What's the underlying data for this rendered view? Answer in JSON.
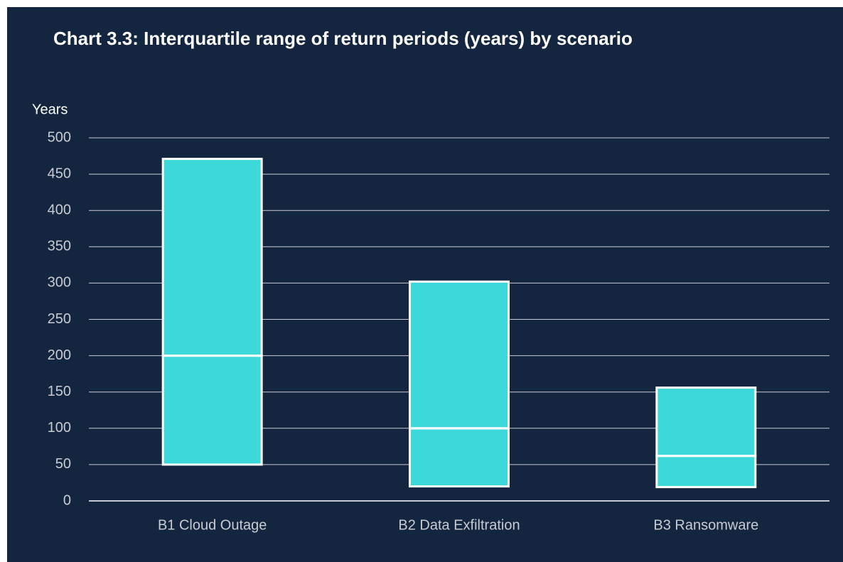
{
  "chart_data": {
    "type": "box",
    "title": "Chart 3.3: Interquartile range of return periods (years) by scenario",
    "ylabel": "Years",
    "categories": [
      "B1 Cloud Outage",
      "B2 Data Exfiltration",
      "B3 Ransomware"
    ],
    "q1": [
      50,
      20,
      19
    ],
    "median": [
      200,
      100,
      62
    ],
    "q3": [
      471,
      302,
      156
    ],
    "color": "#3dd8da",
    "ylim": [
      0,
      500
    ],
    "yticks": [
      0,
      50,
      100,
      150,
      200,
      250,
      300,
      350,
      400,
      450,
      500
    ],
    "grid": true
  }
}
